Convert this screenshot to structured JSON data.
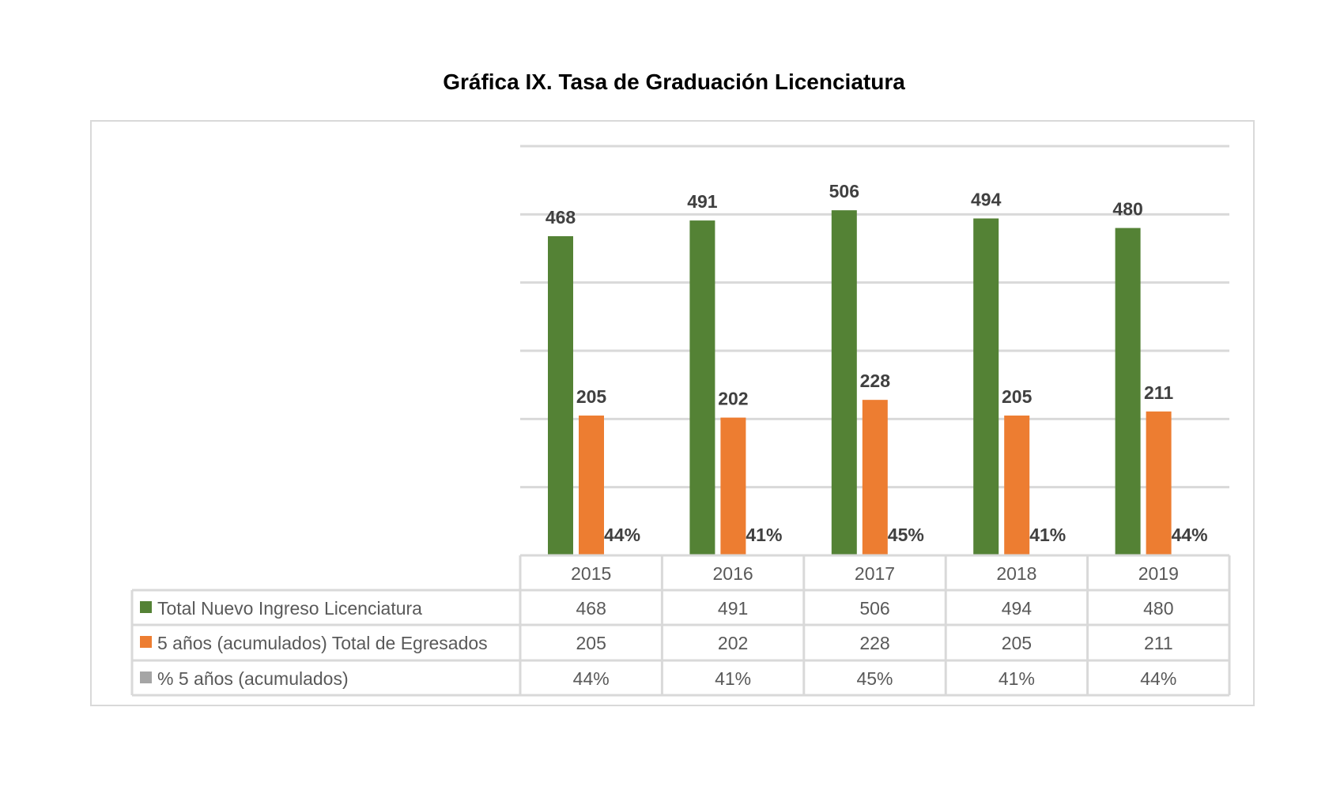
{
  "chart_data": {
    "type": "bar",
    "title": "Gráfica IX. Tasa de Graduación Licenciatura",
    "categories": [
      "2015",
      "2016",
      "2017",
      "2018",
      "2019"
    ],
    "series": [
      {
        "name": "Total Nuevo Ingreso Licenciatura",
        "values": [
          468,
          491,
          506,
          494,
          480
        ],
        "labels": [
          "468",
          "491",
          "506",
          "494",
          "480"
        ],
        "color": "#548235"
      },
      {
        "name": "5 años (acumulados) Total de Egresados",
        "values": [
          205,
          202,
          228,
          205,
          211
        ],
        "labels": [
          "205",
          "202",
          "228",
          "205",
          "211"
        ],
        "color": "#ED7D31"
      },
      {
        "name": "% 5 años (acumulados)",
        "values": [
          0.44,
          0.41,
          0.45,
          0.41,
          0.44
        ],
        "labels": [
          "44%",
          "41%",
          "45%",
          "41%",
          "44%"
        ],
        "color": "#A5A5A5"
      }
    ],
    "ylim": [
      0,
      600
    ],
    "ytick_step": 100,
    "grid": true,
    "legend": "data-table-below"
  }
}
